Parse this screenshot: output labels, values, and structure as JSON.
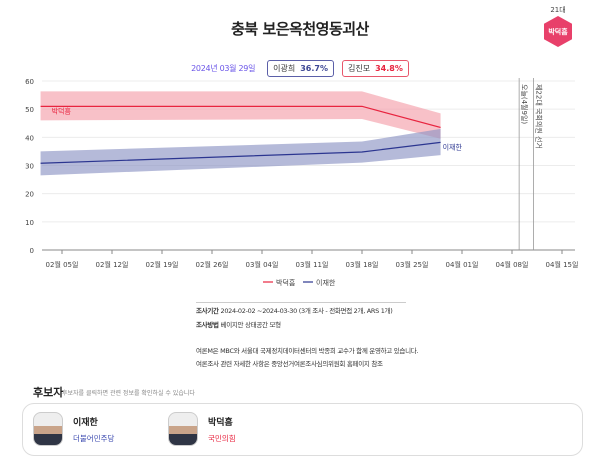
{
  "header": {
    "title": "충북 보은옥천영동괴산",
    "term": "21대",
    "incumbent": "박덕흠",
    "incumbent_color": "#e8406a"
  },
  "summary": {
    "date": "2024년 03월 29일",
    "items": [
      {
        "name": "이광희",
        "value": "36.7%",
        "color": "#3d4795"
      },
      {
        "name": "김진모",
        "value": "34.8%",
        "color": "#e8243f"
      }
    ]
  },
  "chart_data": {
    "type": "line",
    "ylim": [
      0,
      60
    ],
    "yticks": [
      "0",
      "10",
      "20",
      "30",
      "40",
      "50",
      "60"
    ],
    "xticks": [
      {
        "date": "2024-02-05",
        "label": "02월 05일"
      },
      {
        "date": "2024-02-12",
        "label": "02월 12일"
      },
      {
        "date": "2024-02-19",
        "label": "02월 19일"
      },
      {
        "date": "2024-02-26",
        "label": "02월 26일"
      },
      {
        "date": "2024-03-04",
        "label": "03월 04일"
      },
      {
        "date": "2024-03-11",
        "label": "03월 11일"
      },
      {
        "date": "2024-03-18",
        "label": "03월 18일"
      },
      {
        "date": "2024-03-25",
        "label": "03월 25일"
      },
      {
        "date": "2024-04-01",
        "label": "04월 01일"
      },
      {
        "date": "2024-04-08",
        "label": "04월 08일"
      },
      {
        "date": "2024-04-15",
        "label": "04월 15일"
      }
    ],
    "series": [
      {
        "name": "박덕흠",
        "color": "#e8243f",
        "band_color": "#f4a0aa",
        "points": [
          {
            "date": "2024-02-02",
            "value": 51,
            "low": 46,
            "high": 56.3
          },
          {
            "date": "2024-03-18",
            "value": 51,
            "low": 46.5,
            "high": 56.3
          },
          {
            "date": "2024-03-29",
            "value": 43.5,
            "low": 39.5,
            "high": 48.5
          }
        ]
      },
      {
        "name": "이재한",
        "color": "#2b3590",
        "band_color": "#8e95c4",
        "points": [
          {
            "date": "2024-02-02",
            "value": 30.8,
            "low": 26.5,
            "high": 35
          },
          {
            "date": "2024-03-18",
            "value": 34.8,
            "low": 31,
            "high": 38.5
          },
          {
            "date": "2024-03-29",
            "value": 38.2,
            "low": 33.7,
            "high": 43
          }
        ]
      }
    ],
    "markers": [
      {
        "date": "2024-04-09",
        "label": "오늘(4월9일)"
      },
      {
        "date": "2024-04-11",
        "label": "제22대 국회의원 선거"
      }
    ],
    "legend": "bottom",
    "grid": true
  },
  "notes": {
    "period_label": "조사기간",
    "period": "2024-02-02 ~2024-03-30 (3개 조사 - 전화면접 2개, ARS 1개)",
    "method_label": "조사방법",
    "method": "베이지안 상태공간 모형",
    "line1": "여론M은 MBC와 서울대 국제정치데이터센터의 박종희 교수가 함께 운영하고 있습니다.",
    "line2": "여론조사 관련 자세한 사항은 중앙선거여론조사심의위원회 홈페이지 참조"
  },
  "candidates": {
    "title": "후보자",
    "subtitle": "후보자를 클릭하면 관련 정보를 확인하실 수 있습니다",
    "items": [
      {
        "name": "이재한",
        "party": "더불어민주당",
        "party_color": "#3d4bb0"
      },
      {
        "name": "박덕흠",
        "party": "국민의힘",
        "party_color": "#e8243f"
      }
    ]
  }
}
